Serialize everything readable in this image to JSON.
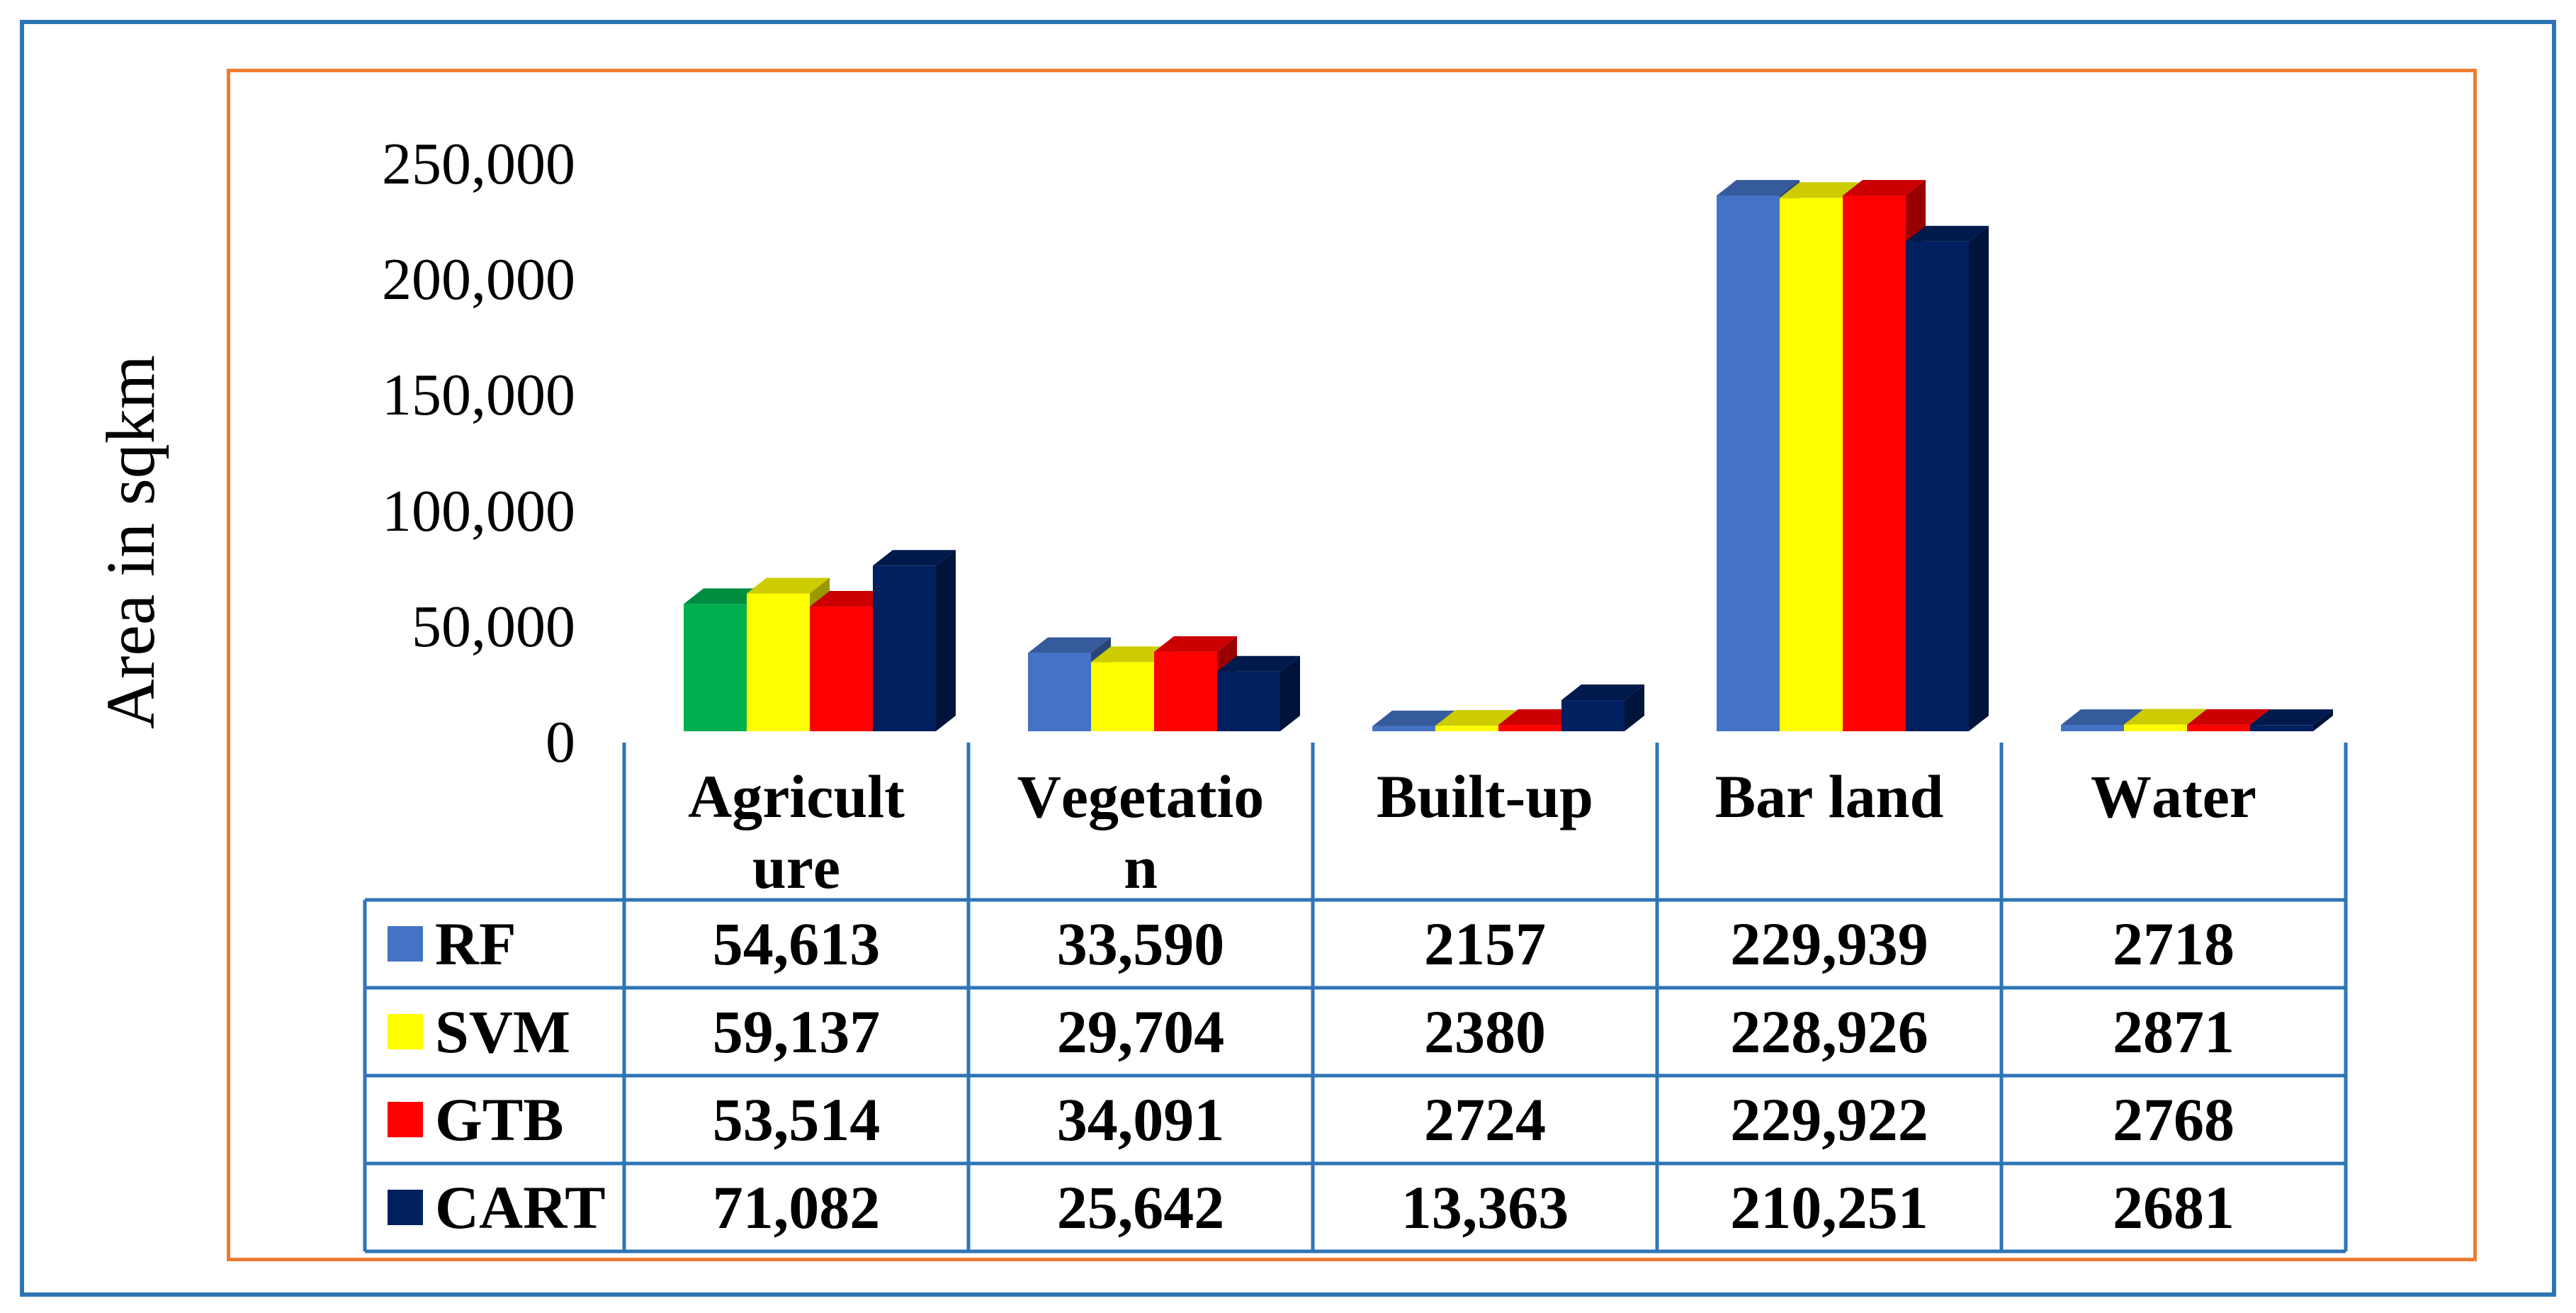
{
  "chart_data": {
    "type": "bar",
    "variant": "3d-clustered-column-with-data-table",
    "title": "",
    "xlabel": "",
    "ylabel": "Area in sqkm",
    "ylim": [
      0,
      250000
    ],
    "yticks": [
      0,
      50000,
      100000,
      150000,
      200000,
      250000
    ],
    "ytick_labels": [
      "0",
      "50,000",
      "100,000",
      "150,000",
      "200,000",
      "250,000"
    ],
    "grid": false,
    "legend": "data-table-left",
    "categories": [
      "Agriculture",
      "Vegetation",
      "Built-up",
      "Bar land",
      "Water"
    ],
    "series": [
      {
        "name": "RF",
        "color": "#4472C4",
        "point_colors": [
          "#00B050",
          null,
          null,
          null,
          null
        ],
        "values": [
          54613,
          33590,
          2157,
          229939,
          2718
        ],
        "labels": [
          "54,613",
          "33,590",
          "2157",
          "229,939",
          "2718"
        ]
      },
      {
        "name": "SVM",
        "color": "#FFFF00",
        "point_colors": [
          null,
          null,
          null,
          null,
          null
        ],
        "values": [
          59137,
          29704,
          2380,
          228926,
          2871
        ],
        "labels": [
          "59,137",
          "29,704",
          "2380",
          "228,926",
          "2871"
        ]
      },
      {
        "name": "GTB",
        "color": "#FF0000",
        "point_colors": [
          null,
          null,
          null,
          null,
          null
        ],
        "values": [
          53514,
          34091,
          2724,
          229922,
          2768
        ],
        "labels": [
          "53,514",
          "34,091",
          "2724",
          "229,922",
          "2768"
        ]
      },
      {
        "name": "CART",
        "color": "#002060",
        "point_colors": [
          null,
          null,
          null,
          null,
          null
        ],
        "values": [
          71082,
          25642,
          13363,
          210251,
          2681
        ],
        "labels": [
          "71,082",
          "25,642",
          "13,363",
          "210,251",
          "2681"
        ]
      }
    ]
  },
  "colors": {
    "outer_border": "#2E75B6",
    "inner_border": "#ED7D31",
    "table_lines": "#2E75B6",
    "text": "#000000"
  }
}
